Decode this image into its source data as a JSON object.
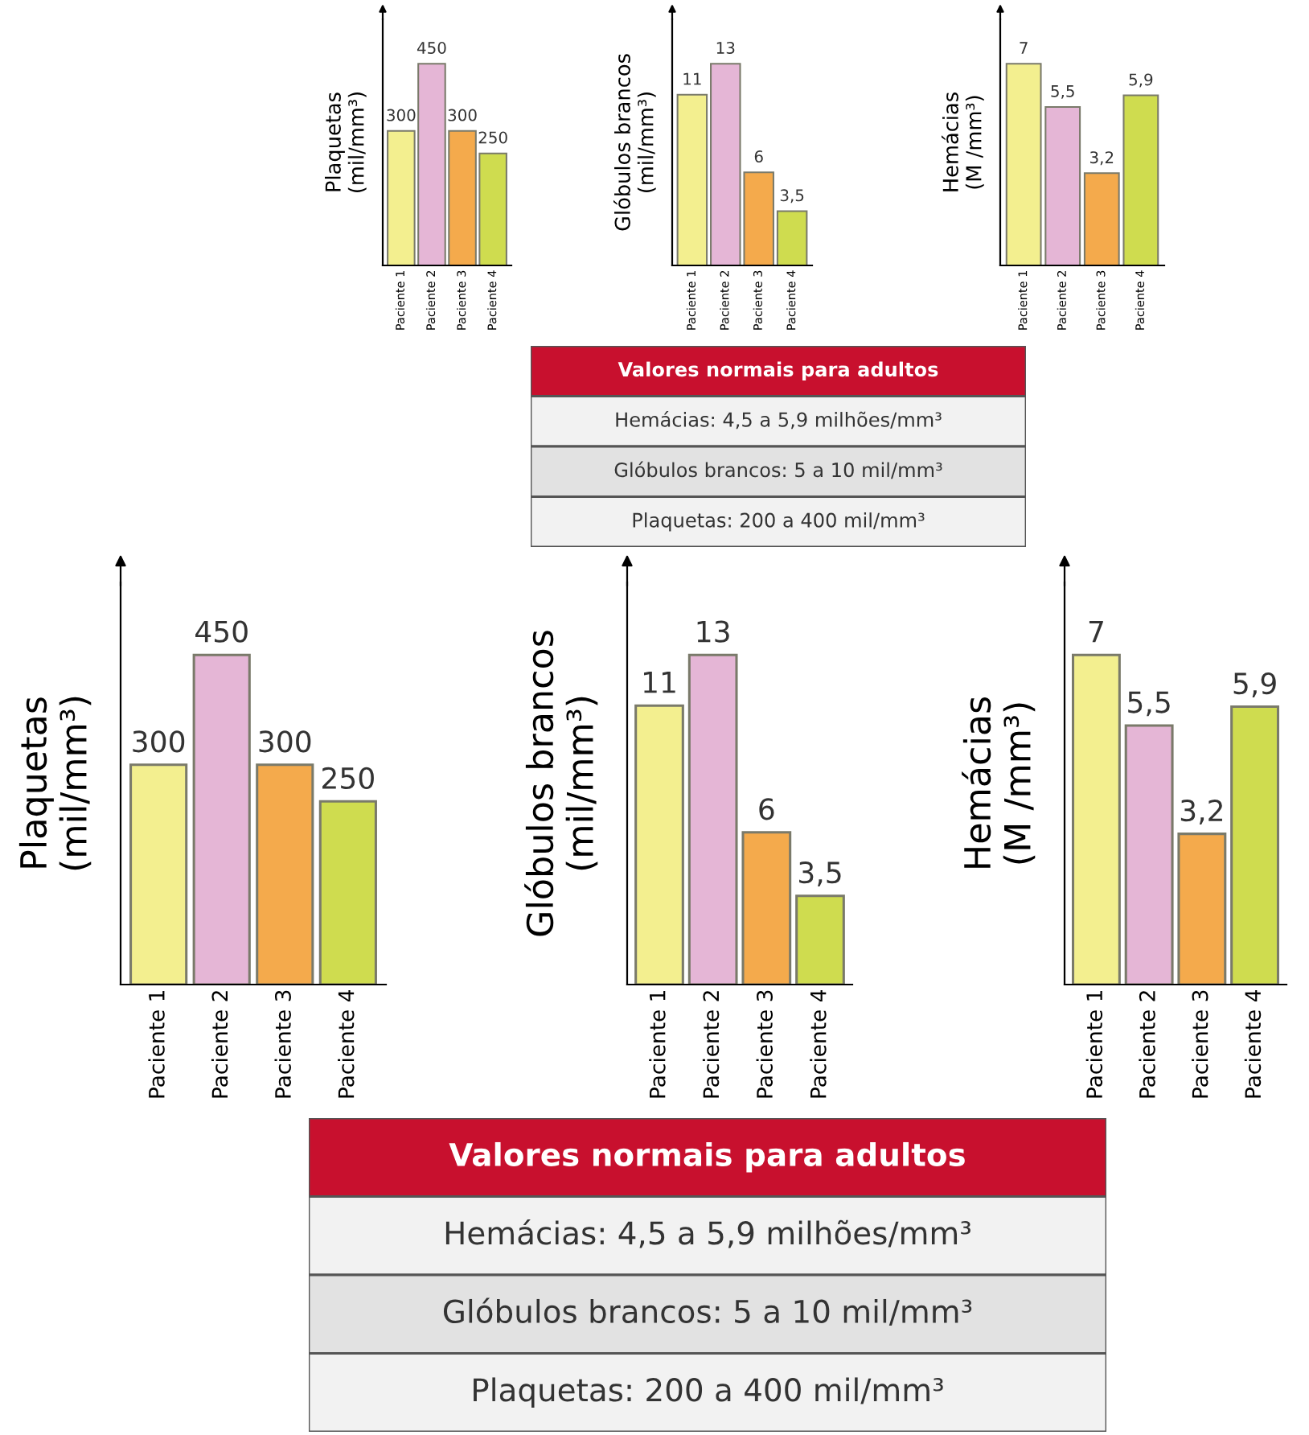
{
  "chart_data": [
    {
      "type": "bar",
      "ylabel": "Plaquetas\n(mil/mm³)",
      "categories": [
        "Paciente 1",
        "Paciente 2",
        "Paciente 3",
        "Paciente 4"
      ],
      "values": [
        300,
        450,
        300,
        250
      ],
      "colors": [
        "#f3ef8f",
        "#e5b6d6",
        "#f4aa4c",
        "#cfdc4f"
      ],
      "data_labels": true
    },
    {
      "type": "bar",
      "ylabel": "Glóbulos brancos\n(mil/mm³)",
      "categories": [
        "Paciente 1",
        "Paciente 2",
        "Paciente 3",
        "Paciente 4"
      ],
      "values": [
        11,
        13,
        6,
        3.5
      ],
      "colors": [
        "#f3ef8f",
        "#e5b6d6",
        "#f4aa4c",
        "#cfdc4f"
      ],
      "value_labels": [
        "11",
        "13",
        "6",
        "3,5"
      ]
    },
    {
      "type": "bar",
      "ylabel": "Hemácias\n(M /mm³)",
      "categories": [
        "Paciente 1",
        "Paciente 2",
        "Paciente 3",
        "Paciente 4"
      ],
      "values": [
        7,
        5.5,
        3.2,
        5.9
      ],
      "colors": [
        "#f3ef8f",
        "#e5b6d6",
        "#f4aa4c",
        "#cfdc4f"
      ],
      "value_labels": [
        "7",
        "5,5",
        "3,2",
        "5,9"
      ]
    },
    {
      "type": "other",
      "title": "Valores normais para adultos",
      "annotations": [
        "Hemácias: 4,5 a 5,9 milhões/mm³",
        "Glóbulos brancos: 5 a 10 mil/mm³",
        "Plaquetas: 200 a 400 mil/mm³"
      ]
    },
    {
      "type": "bar",
      "ylabel": "Plaquetas\n(mil/mm³)",
      "categories": [
        "Paciente 1",
        "Paciente 2",
        "Paciente 3",
        "Paciente 4"
      ],
      "values": [
        300,
        450,
        300,
        250
      ],
      "colors": [
        "#f3ef8f",
        "#e5b6d6",
        "#f4aa4c",
        "#cfdc4f"
      ],
      "data_labels": true
    },
    {
      "type": "bar",
      "ylabel": "Glóbulos brancos\n(mil/mm³)",
      "categories": [
        "Paciente 1",
        "Paciente 2",
        "Paciente 3",
        "Paciente 4"
      ],
      "values": [
        11,
        13,
        6,
        3.5
      ],
      "colors": [
        "#f3ef8f",
        "#e5b6d6",
        "#f4aa4c",
        "#cfdc4f"
      ],
      "value_labels": [
        "11",
        "13",
        "6",
        "3,5"
      ]
    },
    {
      "type": "bar",
      "ylabel": "Hemácias\n(M /mm³)",
      "categories": [
        "Paciente 1",
        "Paciente 2",
        "Paciente 3",
        "Paciente 4"
      ],
      "values": [
        7,
        5.5,
        3.2,
        5.9
      ],
      "colors": [
        "#f3ef8f",
        "#e5b6d6",
        "#f4aa4c",
        "#cfdc4f"
      ],
      "value_labels": [
        "7",
        "5,5",
        "3,2",
        "5,9"
      ]
    },
    {
      "type": "other",
      "title": "Valores normais para adultos",
      "annotations": [
        "Hemácias: 4,5 a 5,9 milhões/mm³",
        "Glóbulos brancos: 5 a 10 mil/mm³",
        "Plaquetas: 200 a 400 mil/mm³"
      ]
    }
  ]
}
